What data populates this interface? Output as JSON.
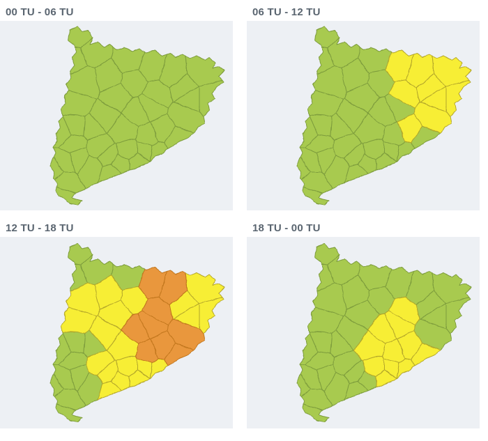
{
  "region": "Catalunya",
  "map_unit": "comarques",
  "panel_bg": "#edf0f4",
  "header_text_color": "#5a6570",
  "warning_colors": {
    "green": "#a8ca4f",
    "yellow": "#f7ee34",
    "orange": "#e9973e"
  },
  "warning_stroke_colors": {
    "green": "#7d9c3c",
    "yellow": "#b3a62a",
    "orange": "#c1761d"
  },
  "periods": [
    {
      "label": "00 TU - 06 TU",
      "default_level": "green",
      "yellow_comarques": [],
      "orange_comarques": []
    },
    {
      "label": "06 TU - 12 TU",
      "default_level": "green",
      "yellow_comarques": [
        "Ripollès",
        "Garrotxa",
        "Alt Empordà",
        "Pla de l'Estany",
        "Gironès",
        "Baix Empordà",
        "La Selva",
        "Osona",
        "Vallès Oriental"
      ],
      "orange_comarques": []
    },
    {
      "label": "12 TU - 18 TU",
      "default_level": "green",
      "yellow_comarques": [
        "Pallars Jussà",
        "Alt Urgell",
        "Berguedà",
        "Solsonès",
        "La Noguera",
        "Segarra",
        "Anoia",
        "Conca de Barberà",
        "Alt Camp",
        "Tarragonès",
        "Baix Penedès",
        "Alt Penedès",
        "Garraf",
        "Baix Llobregat",
        "Barcelonès",
        "Gironès",
        "Pla de l'Estany",
        "Baix Empordà",
        "Alt Empordà"
      ],
      "orange_comarques": [
        "Ripollès",
        "Garrotxa",
        "Osona",
        "Moianès",
        "Bages",
        "Vallès Occidental",
        "Vallès Oriental",
        "La Selva",
        "Maresme"
      ]
    },
    {
      "label": "18 TU - 00 TU",
      "default_level": "green",
      "yellow_comarques": [
        "Osona",
        "Moianès",
        "Bages",
        "Anoia",
        "Alt Penedès",
        "Garraf",
        "Baix Llobregat",
        "Barcelonès",
        "Vallès Occidental",
        "Vallès Oriental",
        "Maresme"
      ],
      "orange_comarques": []
    }
  ]
}
